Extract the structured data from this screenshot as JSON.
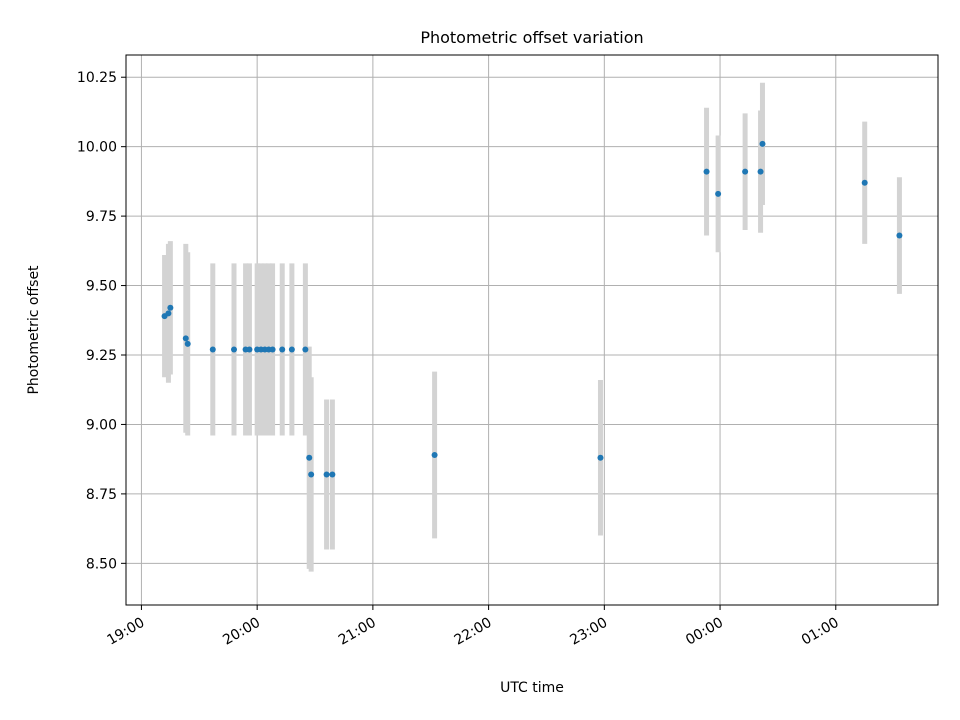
{
  "chart_data": {
    "type": "scatter",
    "title": "Photometric offset variation",
    "xlabel": "UTC time",
    "ylabel": "Photometric offset",
    "xlim": [
      "18:52",
      "01:53"
    ],
    "ylim": [
      8.35,
      10.33
    ],
    "x_ticks": [
      "19:00",
      "20:00",
      "21:00",
      "22:00",
      "23:00",
      "00:00",
      "01:00"
    ],
    "y_ticks": [
      8.5,
      8.75,
      9.0,
      9.25,
      9.5,
      9.75,
      10.0,
      10.25
    ],
    "grid": true,
    "legend": "none",
    "colors": {
      "point": "#1f77b4",
      "errorbar": "#d3d3d3",
      "grid": "#b0b0b0"
    },
    "points": [
      {
        "t": "19:12",
        "y": 9.39,
        "err": 0.22
      },
      {
        "t": "19:14",
        "y": 9.4,
        "err": 0.25
      },
      {
        "t": "19:15",
        "y": 9.42,
        "err": 0.24
      },
      {
        "t": "19:23",
        "y": 9.31,
        "err": 0.34
      },
      {
        "t": "19:24",
        "y": 9.29,
        "err": 0.33
      },
      {
        "t": "19:37",
        "y": 9.27,
        "err": 0.31
      },
      {
        "t": "19:48",
        "y": 9.27,
        "err": 0.31
      },
      {
        "t": "19:54",
        "y": 9.27,
        "err": 0.31
      },
      {
        "t": "19:56",
        "y": 9.27,
        "err": 0.31
      },
      {
        "t": "20:00",
        "y": 9.27,
        "err": 0.31
      },
      {
        "t": "20:02",
        "y": 9.27,
        "err": 0.31
      },
      {
        "t": "20:04",
        "y": 9.27,
        "err": 0.31
      },
      {
        "t": "20:06",
        "y": 9.27,
        "err": 0.31
      },
      {
        "t": "20:08",
        "y": 9.27,
        "err": 0.31
      },
      {
        "t": "20:13",
        "y": 9.27,
        "err": 0.31
      },
      {
        "t": "20:18",
        "y": 9.27,
        "err": 0.31
      },
      {
        "t": "20:25",
        "y": 9.27,
        "err": 0.31
      },
      {
        "t": "20:27",
        "y": 8.88,
        "err": 0.4
      },
      {
        "t": "20:28",
        "y": 8.82,
        "err": 0.35
      },
      {
        "t": "20:36",
        "y": 8.82,
        "err": 0.27
      },
      {
        "t": "20:39",
        "y": 8.82,
        "err": 0.27
      },
      {
        "t": "21:32",
        "y": 8.89,
        "err": 0.3
      },
      {
        "t": "22:58",
        "y": 8.88,
        "err": 0.28
      },
      {
        "t": "23:53",
        "y": 9.91,
        "err": 0.23
      },
      {
        "t": "23:59",
        "y": 9.83,
        "err": 0.21
      },
      {
        "t": "00:13",
        "y": 9.91,
        "err": 0.21
      },
      {
        "t": "00:21",
        "y": 9.91,
        "err": 0.22
      },
      {
        "t": "00:22",
        "y": 10.01,
        "err": 0.22
      },
      {
        "t": "01:15",
        "y": 9.87,
        "err": 0.22
      },
      {
        "t": "01:33",
        "y": 9.68,
        "err": 0.21
      }
    ]
  }
}
